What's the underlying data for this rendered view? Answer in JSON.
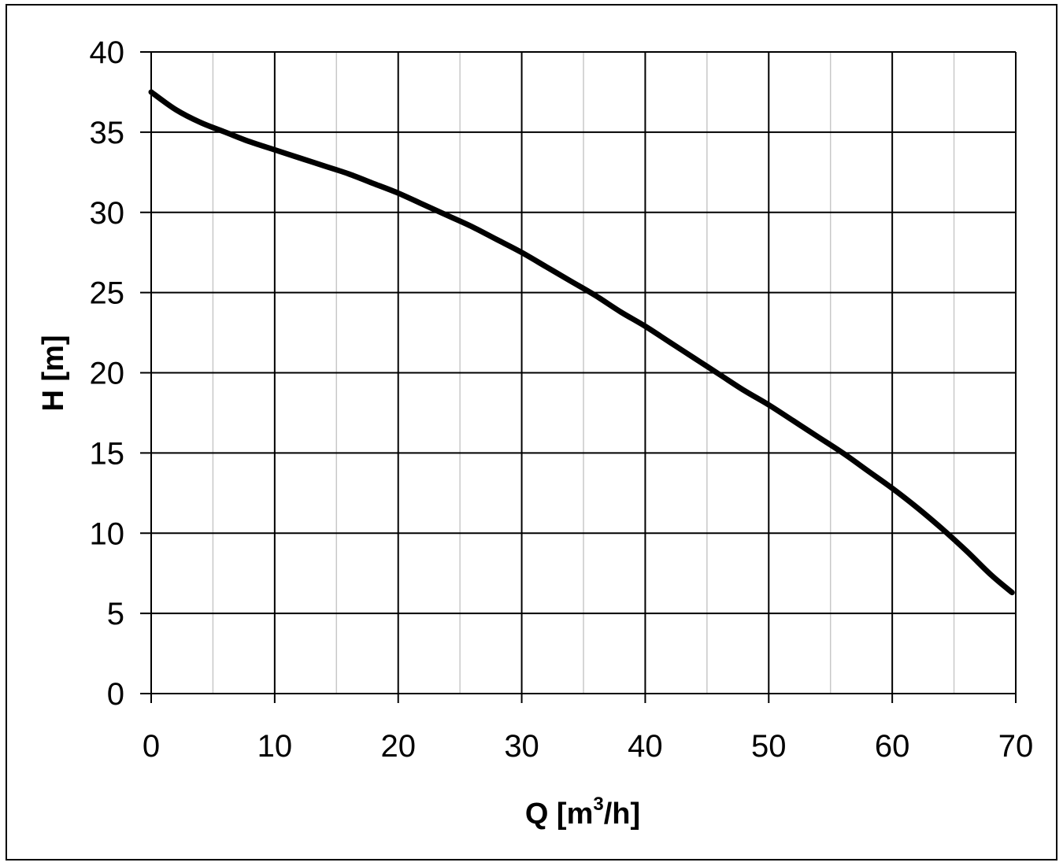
{
  "chart_data": {
    "type": "line",
    "xlabel": {
      "main": "Q [m",
      "sup": "3",
      "tail": "/h]"
    },
    "ylabel": "H [m]",
    "xlim": [
      0,
      70
    ],
    "ylim": [
      0,
      40
    ],
    "x_ticks": [
      0,
      10,
      20,
      30,
      40,
      50,
      60,
      70
    ],
    "y_ticks": [
      0,
      5,
      10,
      15,
      20,
      25,
      30,
      35,
      40
    ],
    "x_minor_step": 5,
    "grid": true,
    "legend": "none",
    "colors": {
      "line": "#000000",
      "major_grid": "#000000",
      "minor_grid": "#c8c8c8"
    },
    "series": [
      {
        "x": [
          0,
          2,
          4,
          6,
          8,
          10,
          12,
          14,
          16,
          18,
          20,
          22,
          24,
          26,
          28,
          30,
          32,
          34,
          36,
          38,
          40,
          42,
          44,
          46,
          48,
          50,
          52,
          54,
          56,
          58,
          60,
          62,
          64,
          66,
          68,
          69.7
        ],
        "y": [
          37.5,
          36.4,
          35.6,
          35.0,
          34.4,
          33.9,
          33.4,
          32.9,
          32.4,
          31.8,
          31.2,
          30.5,
          29.8,
          29.1,
          28.3,
          27.5,
          26.6,
          25.7,
          24.8,
          23.8,
          22.9,
          21.9,
          20.9,
          19.9,
          18.9,
          18.0,
          17.0,
          16.0,
          15.0,
          13.9,
          12.8,
          11.6,
          10.3,
          8.9,
          7.4,
          6.3
        ]
      }
    ]
  }
}
